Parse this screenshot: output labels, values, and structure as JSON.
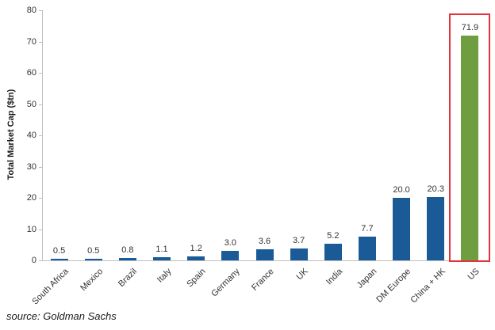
{
  "chart_data": {
    "type": "bar",
    "categories": [
      "South Africa",
      "Mexico",
      "Brazil",
      "Italy",
      "Spain",
      "Germany",
      "France",
      "UK",
      "India",
      "Japan",
      "DM Europe",
      "China + HK",
      "US"
    ],
    "values": [
      0.5,
      0.5,
      0.8,
      1.1,
      1.2,
      3.0,
      3.6,
      3.7,
      5.2,
      7.7,
      20.0,
      20.3,
      71.9
    ],
    "value_labels": [
      "0.5",
      "0.5",
      "0.8",
      "1.1",
      "1.2",
      "3.0",
      "3.6",
      "3.7",
      "5.2",
      "7.7",
      "20.0",
      "20.3",
      "71.9"
    ],
    "title": "",
    "xlabel": "",
    "ylabel": "Total Market Cap ($tn)",
    "ylim": [
      0,
      80
    ],
    "yticks": [
      0,
      10,
      20,
      30,
      40,
      50,
      60,
      70,
      80
    ],
    "grid": false,
    "legend_position": "none",
    "bar_color": "#1a5b97",
    "highlight_index": 12,
    "highlight_bar_color": "#6e9e3f",
    "highlight_box_color": "#e0353e"
  },
  "source": {
    "label": "source: Goldman Sachs"
  }
}
